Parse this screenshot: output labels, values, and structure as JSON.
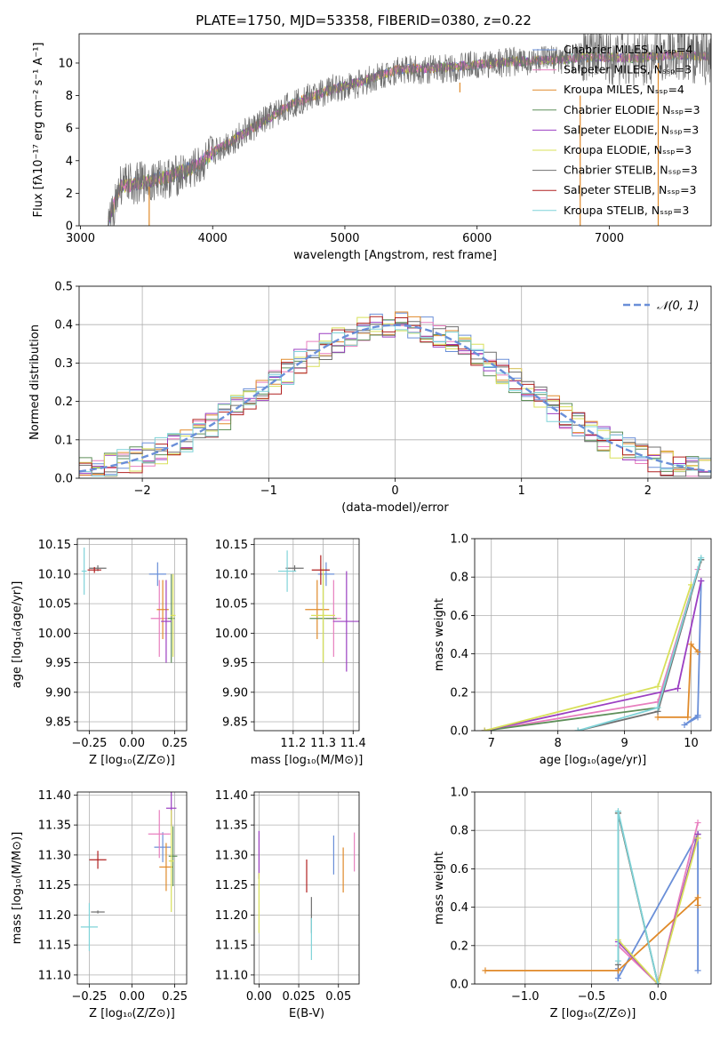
{
  "palette": [
    "#6a8fd8",
    "#e87fbf",
    "#e08a2a",
    "#5f8f5a",
    "#9b3fc2",
    "#d8e05a",
    "#6f6f6f",
    "#b02020",
    "#7fd3d8"
  ],
  "chart_data": [
    {
      "id": "spectrum",
      "type": "line",
      "title": "PLATE=1750, MJD=53358, FIBERID=0380, z=0.22",
      "xlabel": "wavelength [Angstrom, rest frame]",
      "ylabel": "Flux [fλ10⁻¹⁷ erg cm⁻² s⁻¹ A⁻¹]",
      "xlim": [
        2990,
        7770
      ],
      "ylim": [
        0,
        11.8
      ],
      "xticks": [
        "3000",
        "4000",
        "5000",
        "6000",
        "7000"
      ],
      "yticks": [
        "0",
        "2",
        "4",
        "6",
        "8",
        "10"
      ],
      "grid": false,
      "legend_position": "top-right",
      "series": [
        {
          "name": "Chabrier MILES, N_SSP=4"
        },
        {
          "name": "Salpeter MILES, N_SSP=3"
        },
        {
          "name": "Kroupa MILES, N_SSP=4"
        },
        {
          "name": "Chabrier ELODIE, N_SSP=3"
        },
        {
          "name": "Salpeter ELODIE, N_SSP=3"
        },
        {
          "name": "Kroupa ELODIE, N_SSP=3"
        },
        {
          "name": "Chabrier STELIB, N_SSP=3"
        },
        {
          "name": "Salpeter STELIB, N_SSP=3"
        },
        {
          "name": "Kroupa STELIB, N_SSP=3"
        }
      ],
      "continuum": {
        "x": [
          3210,
          3300,
          3500,
          3700,
          3900,
          4000,
          4300,
          4600,
          4900,
          5100,
          5400,
          5700,
          6000,
          6300,
          6600,
          6900,
          7200,
          7500,
          7770
        ],
        "y": [
          0.2,
          2.4,
          2.7,
          3.1,
          3.8,
          4.5,
          6.0,
          7.5,
          8.4,
          8.8,
          9.6,
          9.7,
          9.9,
          10.1,
          10.2,
          10.4,
          10.3,
          10.5,
          10.4
        ]
      },
      "data": {
        "x": [
          3210,
          3300,
          3500,
          3700,
          3900,
          4000,
          4300,
          4600,
          4900,
          5100,
          5400,
          5700,
          6000,
          6300,
          6600,
          6900,
          7200,
          7500,
          7770
        ],
        "y": [
          0.0,
          2.5,
          2.7,
          3.0,
          3.6,
          4.5,
          6.0,
          7.5,
          8.4,
          8.7,
          9.6,
          9.6,
          9.9,
          10.1,
          10.2,
          10.5,
          10.3,
          10.6,
          10.4
        ],
        "noise": 0.9
      },
      "spikes": [
        {
          "x": 3520,
          "y0": 0,
          "y1": 2.4
        },
        {
          "x": 5870,
          "y0": 8.2,
          "y1": 8.8
        },
        {
          "x": 6780,
          "y0": 0,
          "y1": 8.0
        },
        {
          "x": 7370,
          "y0": 0,
          "y1": 10.0
        }
      ]
    },
    {
      "id": "residuals",
      "type": "bar",
      "xlabel": "(data-model)/error",
      "ylabel": "Normed distribution",
      "xlim": [
        -2.5,
        2.5
      ],
      "ylim": [
        0,
        0.5
      ],
      "xticks": [
        "−2",
        "−1",
        "0",
        "1",
        "2"
      ],
      "yticks": [
        "0.0",
        "0.1",
        "0.2",
        "0.3",
        "0.4",
        "0.5"
      ],
      "grid": true,
      "bin_width": 0.1,
      "legend_position": "top-right",
      "reference": {
        "name": "𝒩(0, 1)",
        "mean": 0,
        "sigma": 1
      },
      "series": [
        {
          "name": "Chabrier MILES, N_SSP=4"
        },
        {
          "name": "Salpeter MILES, N_SSP=3"
        },
        {
          "name": "Kroupa MILES, N_SSP=4"
        },
        {
          "name": "Chabrier ELODIE, N_SSP=3"
        },
        {
          "name": "Salpeter ELODIE, N_SSP=3"
        },
        {
          "name": "Kroupa ELODIE, N_SSP=3"
        },
        {
          "name": "Chabrier STELIB, N_SSP=3"
        },
        {
          "name": "Salpeter STELIB, N_SSP=3"
        },
        {
          "name": "Kroupa STELIB, N_SSP=3"
        }
      ]
    },
    {
      "id": "age_vs_Z",
      "type": "scatter",
      "xlabel": "Z [log₁₀(Z/Z⊙)]",
      "ylabel": "age  [log₁₀(age/yr)]",
      "xlim": [
        -0.32,
        0.32
      ],
      "ylim": [
        9.835,
        10.16
      ],
      "xticks": [
        {
          "v": -0.25,
          "l": "−0.25"
        },
        {
          "v": 0,
          "l": "0.00"
        },
        {
          "v": 0.25,
          "l": "0.25"
        }
      ],
      "yticks": [
        {
          "v": 9.85,
          "l": "9.85"
        },
        {
          "v": 9.9,
          "l": "9.90"
        },
        {
          "v": 9.95,
          "l": "9.95"
        },
        {
          "v": 10.0,
          "l": "10.00"
        },
        {
          "v": 10.05,
          "l": "10.05"
        },
        {
          "v": 10.1,
          "l": "10.10"
        },
        {
          "v": 10.15,
          "l": "10.15"
        }
      ],
      "grid": true,
      "points": [
        {
          "x": 0.15,
          "y": 10.1,
          "xe": 0.1,
          "ye": 0.04,
          "c": 0
        },
        {
          "x": 0.16,
          "y": 10.025,
          "xe": 0.1,
          "ye": 0.13,
          "c": 1
        },
        {
          "x": 0.18,
          "y": 10.04,
          "xe": 0.07,
          "ye": 0.1,
          "c": 2
        },
        {
          "x": 0.23,
          "y": 10.025,
          "xe": 0.04,
          "ye": 0.15,
          "c": 3
        },
        {
          "x": 0.2,
          "y": 10.02,
          "xe": 0.06,
          "ye": 0.14,
          "c": 4
        },
        {
          "x": 0.24,
          "y": 10.03,
          "xe": 0.03,
          "ye": 0.14,
          "c": 5
        },
        {
          "x": -0.2,
          "y": 10.11,
          "xe": 0.1,
          "ye": 0.01,
          "c": 6
        },
        {
          "x": -0.22,
          "y": 10.107,
          "xe": 0.08,
          "ye": 0.01,
          "c": 7
        },
        {
          "x": -0.28,
          "y": 10.105,
          "xe": 0.03,
          "ye": 0.08,
          "c": 8
        }
      ]
    },
    {
      "id": "age_vs_mass",
      "type": "scatter",
      "xlabel": "mass [log₁₀(M/M⊙)]",
      "ylabel": "",
      "xlim": [
        11.07,
        11.42
      ],
      "ylim": [
        9.835,
        10.16
      ],
      "xticks": [
        {
          "v": 11.2,
          "l": "11.2"
        },
        {
          "v": 11.3,
          "l": "11.3"
        },
        {
          "v": 11.4,
          "l": "11.4"
        }
      ],
      "yticks": [
        {
          "v": 9.85,
          "l": "9.85"
        },
        {
          "v": 9.9,
          "l": "9.90"
        },
        {
          "v": 9.95,
          "l": "9.95"
        },
        {
          "v": 10.0,
          "l": "10.00"
        },
        {
          "v": 10.05,
          "l": "10.05"
        },
        {
          "v": 10.1,
          "l": "10.10"
        },
        {
          "v": 10.15,
          "l": "10.15"
        }
      ],
      "grid": true,
      "points": [
        {
          "x": 11.31,
          "y": 10.1,
          "xe": 0.055,
          "ye": 0.04,
          "c": 0
        },
        {
          "x": 11.335,
          "y": 10.025,
          "xe": 0.05,
          "ye": 0.13,
          "c": 1
        },
        {
          "x": 11.28,
          "y": 10.04,
          "xe": 0.08,
          "ye": 0.1,
          "c": 2
        },
        {
          "x": 11.3,
          "y": 10.025,
          "xe": 0.09,
          "ye": 0.15,
          "c": 3
        },
        {
          "x": 11.378,
          "y": 10.02,
          "xe": 0.09,
          "ye": 0.17,
          "c": 4
        },
        {
          "x": 11.3,
          "y": 10.03,
          "xe": 0.08,
          "ye": 0.16,
          "c": 5
        },
        {
          "x": 11.205,
          "y": 10.11,
          "xe": 0.06,
          "ye": 0.01,
          "c": 6
        },
        {
          "x": 11.292,
          "y": 10.107,
          "xe": 0.06,
          "ye": 0.05,
          "c": 7
        },
        {
          "x": 11.18,
          "y": 10.105,
          "xe": 0.06,
          "ye": 0.07,
          "c": 8
        }
      ]
    },
    {
      "id": "mass_weight_vs_age",
      "type": "line",
      "xlabel": "age  [log₁₀(age/yr)]",
      "ylabel": "mass weight",
      "xlim": [
        6.75,
        10.3
      ],
      "ylim": [
        0,
        1.0
      ],
      "xticks": [
        {
          "v": 7,
          "l": "7"
        },
        {
          "v": 8,
          "l": "8"
        },
        {
          "v": 9,
          "l": "9"
        },
        {
          "v": 10,
          "l": "10"
        }
      ],
      "yticks": [
        {
          "v": 0,
          "l": "0.0"
        },
        {
          "v": 0.2,
          "l": "0.2"
        },
        {
          "v": 0.4,
          "l": "0.4"
        },
        {
          "v": 0.6,
          "l": "0.6"
        },
        {
          "v": 0.8,
          "l": "0.8"
        },
        {
          "v": 1.0,
          "l": "1.0"
        }
      ],
      "grid": true,
      "series": [
        {
          "c": 0,
          "x": [
            10.1,
            9.9,
            10.1,
            10.15
          ],
          "y": [
            0.07,
            0.03,
            0.08,
            0.78
          ]
        },
        {
          "c": 1,
          "x": [
            6.9,
            9.5,
            10.1
          ],
          "y": [
            0.0,
            0.15,
            0.84
          ]
        },
        {
          "c": 2,
          "x": [
            9.5,
            9.95,
            10.0,
            10.1
          ],
          "y": [
            0.07,
            0.07,
            0.45,
            0.41
          ]
        },
        {
          "c": 3,
          "x": [
            6.9,
            9.5,
            10.15
          ],
          "y": [
            0.0,
            0.12,
            0.89
          ]
        },
        {
          "c": 4,
          "x": [
            6.9,
            9.8,
            10.15
          ],
          "y": [
            0.0,
            0.22,
            0.78
          ]
        },
        {
          "c": 5,
          "x": [
            6.9,
            9.5,
            10.0
          ],
          "y": [
            0.0,
            0.23,
            0.76
          ]
        },
        {
          "c": 6,
          "x": [
            8.3,
            9.5,
            10.15
          ],
          "y": [
            0.0,
            0.1,
            0.89
          ]
        },
        {
          "c": 8,
          "x": [
            8.3,
            9.5,
            10.15
          ],
          "y": [
            0.0,
            0.12,
            0.9
          ]
        }
      ]
    },
    {
      "id": "mass_vs_Z",
      "type": "scatter",
      "xlabel": "Z [log₁₀(Z/Z⊙)]",
      "ylabel": "mass [log₁₀(M/M⊙)]",
      "xlim": [
        -0.32,
        0.32
      ],
      "ylim": [
        11.085,
        11.405
      ],
      "xticks": [
        {
          "v": -0.25,
          "l": "−0.25"
        },
        {
          "v": 0,
          "l": "0.00"
        },
        {
          "v": 0.25,
          "l": "0.25"
        }
      ],
      "yticks": [
        {
          "v": 11.1,
          "l": "11.10"
        },
        {
          "v": 11.15,
          "l": "11.15"
        },
        {
          "v": 11.2,
          "l": "11.20"
        },
        {
          "v": 11.25,
          "l": "11.25"
        },
        {
          "v": 11.3,
          "l": "11.30"
        },
        {
          "v": 11.35,
          "l": "11.35"
        },
        {
          "v": 11.4,
          "l": "11.40"
        }
      ],
      "grid": true,
      "points": [
        {
          "x": 0.18,
          "y": 11.313,
          "xe": 0.1,
          "ye": 0.05,
          "c": 0
        },
        {
          "x": 0.16,
          "y": 11.335,
          "xe": 0.13,
          "ye": 0.08,
          "c": 1
        },
        {
          "x": 0.2,
          "y": 11.28,
          "xe": 0.08,
          "ye": 0.08,
          "c": 2
        },
        {
          "x": 0.24,
          "y": 11.298,
          "xe": 0.05,
          "ye": 0.1,
          "c": 3
        },
        {
          "x": 0.23,
          "y": 11.378,
          "xe": 0.06,
          "ye": 0.06,
          "c": 4
        },
        {
          "x": 0.23,
          "y": 11.29,
          "xe": 0.03,
          "ye": 0.17,
          "c": 5
        },
        {
          "x": -0.2,
          "y": 11.205,
          "xe": 0.08,
          "ye": 0.005,
          "c": 6
        },
        {
          "x": -0.2,
          "y": 11.292,
          "xe": 0.1,
          "ye": 0.03,
          "c": 7
        },
        {
          "x": -0.25,
          "y": 11.18,
          "xe": 0.1,
          "ye": 0.08,
          "c": 8
        }
      ]
    },
    {
      "id": "mass_vs_ebv",
      "type": "scatter",
      "xlabel": "E(B-V)",
      "ylabel": "",
      "xlim": [
        -0.003,
        0.063
      ],
      "ylim": [
        11.085,
        11.405
      ],
      "xticks": [
        {
          "v": 0,
          "l": "0.00"
        },
        {
          "v": 0.025,
          "l": "0.025"
        },
        {
          "v": 0.05,
          "l": "0.05"
        }
      ],
      "yticks": [
        {
          "v": 11.1,
          "l": "11.10"
        },
        {
          "v": 11.15,
          "l": "11.15"
        },
        {
          "v": 11.2,
          "l": "11.20"
        },
        {
          "v": 11.25,
          "l": "11.25"
        },
        {
          "v": 11.3,
          "l": "11.30"
        },
        {
          "v": 11.35,
          "l": "11.35"
        },
        {
          "v": 11.4,
          "l": "11.40"
        }
      ],
      "grid": true,
      "points": [
        {
          "x": 0.047,
          "y": 11.3,
          "xe": 0,
          "ye": 0.065,
          "c": 0
        },
        {
          "x": 0.06,
          "y": 11.305,
          "xe": 0,
          "ye": 0.065,
          "c": 1
        },
        {
          "x": 0.053,
          "y": 11.275,
          "xe": 0,
          "ye": 0.075,
          "c": 2
        },
        {
          "x": 0.0,
          "y": 11.3,
          "xe": 0,
          "ye": 0.08,
          "c": 4
        },
        {
          "x": 0.0,
          "y": 11.22,
          "xe": 0,
          "ye": 0.1,
          "c": 5
        },
        {
          "x": 0.033,
          "y": 11.2,
          "xe": 0,
          "ye": 0.06,
          "c": 6
        },
        {
          "x": 0.03,
          "y": 11.265,
          "xe": 0,
          "ye": 0.055,
          "c": 7
        },
        {
          "x": 0.033,
          "y": 11.16,
          "xe": 0,
          "ye": 0.07,
          "c": 8
        }
      ]
    },
    {
      "id": "mass_weight_vs_Z",
      "type": "line",
      "xlabel": "Z [log₁₀(Z/Z⊙)]",
      "ylabel": "mass weight",
      "xlim": [
        -1.38,
        0.4
      ],
      "ylim": [
        0,
        1.0
      ],
      "xticks": [
        {
          "v": -1,
          "l": "−1.0"
        },
        {
          "v": -0.5,
          "l": "−0.5"
        },
        {
          "v": 0,
          "l": "0.0"
        }
      ],
      "yticks": [
        {
          "v": 0,
          "l": "0.0"
        },
        {
          "v": 0.2,
          "l": "0.2"
        },
        {
          "v": 0.4,
          "l": "0.4"
        },
        {
          "v": 0.6,
          "l": "0.6"
        },
        {
          "v": 0.8,
          "l": "0.8"
        },
        {
          "v": 1.0,
          "l": "1.0"
        }
      ],
      "grid": true,
      "series": [
        {
          "c": 0,
          "x": [
            0.3,
            0.3,
            -0.3,
            -0.3
          ],
          "y": [
            0.07,
            0.78,
            0.03,
            0.08
          ]
        },
        {
          "c": 1,
          "x": [
            -0.3,
            0.0,
            0.3
          ],
          "y": [
            0.2,
            0.0,
            0.84
          ]
        },
        {
          "c": 2,
          "x": [
            -1.3,
            -0.3,
            0.3,
            0.3
          ],
          "y": [
            0.07,
            0.07,
            0.45,
            0.41
          ]
        },
        {
          "c": 3,
          "x": [
            -0.3,
            0.0,
            0.3
          ],
          "y": [
            0.89,
            0.0,
            0.78
          ]
        },
        {
          "c": 4,
          "x": [
            -0.3,
            0.0,
            0.3
          ],
          "y": [
            0.22,
            0.0,
            0.78
          ]
        },
        {
          "c": 5,
          "x": [
            -0.3,
            0.0,
            0.3
          ],
          "y": [
            0.23,
            0.0,
            0.76
          ]
        },
        {
          "c": 6,
          "x": [
            -0.3,
            -0.3,
            0.0
          ],
          "y": [
            0.1,
            0.89,
            0.0
          ]
        },
        {
          "c": 8,
          "x": [
            -0.3,
            -0.3,
            0.0
          ],
          "y": [
            0.12,
            0.9,
            0.0
          ]
        }
      ]
    }
  ]
}
